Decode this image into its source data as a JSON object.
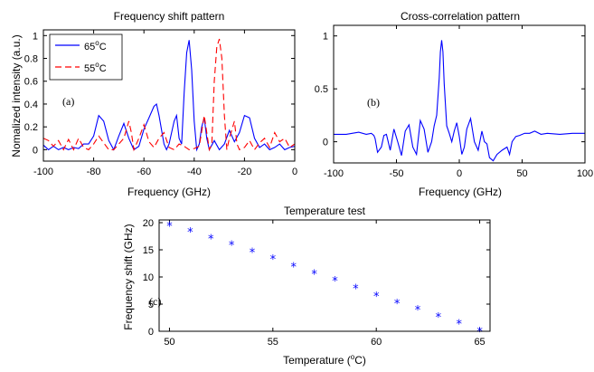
{
  "chart_data": [
    {
      "type": "line",
      "title": "Frequency shift pattern",
      "xlabel": "Frequency (GHz)",
      "ylabel": "Nomalized intensity (a.u.)",
      "panel_label": "(a)",
      "xlim": [
        -100,
        0
      ],
      "ylim": [
        -0.1,
        1.05
      ],
      "xticks": [
        -100,
        -80,
        -60,
        -40,
        -20,
        0
      ],
      "xtick_labels": [
        "-100",
        "-80",
        "-60",
        "-40",
        "-20",
        "0"
      ],
      "yticks": [
        0,
        0.2,
        0.4,
        0.6,
        0.8,
        1
      ],
      "ytick_labels": [
        "0",
        "0.2",
        "0.4",
        "0.6",
        "0.8",
        "1"
      ],
      "legend_position": "top-left",
      "series": [
        {
          "name": "65°C",
          "name_base": "65",
          "name_sup": "o",
          "name_tail": "C",
          "color": "#0000ff",
          "style": "solid",
          "points": [
            [
              -100,
              0.04
            ],
            [
              -98,
              0.0
            ],
            [
              -96,
              0.03
            ],
            [
              -94,
              0.0
            ],
            [
              -92,
              0.02
            ],
            [
              -90,
              0.0
            ],
            [
              -88,
              0.02
            ],
            [
              -86,
              0.01
            ],
            [
              -84,
              0.05
            ],
            [
              -82,
              0.05
            ],
            [
              -80,
              0.12
            ],
            [
              -78,
              0.3
            ],
            [
              -76,
              0.25
            ],
            [
              -74,
              0.08
            ],
            [
              -72,
              0.0
            ],
            [
              -70,
              0.12
            ],
            [
              -68,
              0.23
            ],
            [
              -66,
              0.1
            ],
            [
              -64,
              0.0
            ],
            [
              -62,
              0.03
            ],
            [
              -60,
              0.18
            ],
            [
              -58,
              0.28
            ],
            [
              -56,
              0.38
            ],
            [
              -55,
              0.4
            ],
            [
              -54,
              0.3
            ],
            [
              -52,
              0.05
            ],
            [
              -51,
              0.0
            ],
            [
              -50,
              0.05
            ],
            [
              -48,
              0.25
            ],
            [
              -47,
              0.3
            ],
            [
              -46,
              0.1
            ],
            [
              -45,
              0.05
            ],
            [
              -44,
              0.5
            ],
            [
              -43,
              0.85
            ],
            [
              -42,
              0.96
            ],
            [
              -41,
              0.7
            ],
            [
              -40,
              0.25
            ],
            [
              -39,
              0.0
            ],
            [
              -38,
              0.05
            ],
            [
              -37,
              0.2
            ],
            [
              -36,
              0.28
            ],
            [
              -35,
              0.1
            ],
            [
              -34,
              0.0
            ],
            [
              -32,
              0.08
            ],
            [
              -30,
              0.0
            ],
            [
              -28,
              0.05
            ],
            [
              -26,
              0.17
            ],
            [
              -24,
              0.07
            ],
            [
              -22,
              0.15
            ],
            [
              -20,
              0.3
            ],
            [
              -18,
              0.28
            ],
            [
              -16,
              0.1
            ],
            [
              -14,
              0.02
            ],
            [
              -12,
              0.05
            ],
            [
              -10,
              0.0
            ],
            [
              -8,
              0.02
            ],
            [
              -6,
              0.05
            ],
            [
              -4,
              0.0
            ],
            [
              -2,
              0.02
            ],
            [
              0,
              0.03
            ]
          ]
        },
        {
          "name": "55°C",
          "name_base": "55",
          "name_sup": "o",
          "name_tail": "C",
          "color": "#ff0000",
          "style": "dashed",
          "points": [
            [
              -100,
              0.1
            ],
            [
              -98,
              0.08
            ],
            [
              -96,
              0.03
            ],
            [
              -94,
              0.08
            ],
            [
              -92,
              0.0
            ],
            [
              -90,
              0.09
            ],
            [
              -88,
              0.0
            ],
            [
              -86,
              0.1
            ],
            [
              -84,
              0.02
            ],
            [
              -82,
              0.0
            ],
            [
              -80,
              0.05
            ],
            [
              -78,
              0.12
            ],
            [
              -76,
              0.06
            ],
            [
              -74,
              0.0
            ],
            [
              -72,
              0.0
            ],
            [
              -70,
              0.05
            ],
            [
              -68,
              0.1
            ],
            [
              -66,
              0.25
            ],
            [
              -65,
              0.15
            ],
            [
              -64,
              0.0
            ],
            [
              -62,
              0.1
            ],
            [
              -60,
              0.22
            ],
            [
              -58,
              0.07
            ],
            [
              -56,
              0.02
            ],
            [
              -54,
              0.1
            ],
            [
              -52,
              0.15
            ],
            [
              -50,
              0.02
            ],
            [
              -48,
              0.0
            ],
            [
              -46,
              0.05
            ],
            [
              -44,
              0.03
            ],
            [
              -42,
              0.0
            ],
            [
              -40,
              0.01
            ],
            [
              -38,
              0.03
            ],
            [
              -36,
              0.3
            ],
            [
              -34,
              0.0
            ],
            [
              -33,
              0.05
            ],
            [
              -32,
              0.6
            ],
            [
              -31,
              0.9
            ],
            [
              -30,
              0.97
            ],
            [
              -29,
              0.8
            ],
            [
              -28,
              0.3
            ],
            [
              -27,
              0.0
            ],
            [
              -26,
              0.1
            ],
            [
              -24,
              0.25
            ],
            [
              -23,
              0.05
            ],
            [
              -22,
              0.0
            ],
            [
              -20,
              0.02
            ],
            [
              -18,
              0.08
            ],
            [
              -16,
              0.0
            ],
            [
              -14,
              0.06
            ],
            [
              -12,
              0.1
            ],
            [
              -10,
              0.02
            ],
            [
              -8,
              0.15
            ],
            [
              -6,
              0.07
            ],
            [
              -4,
              0.1
            ],
            [
              -2,
              0.02
            ],
            [
              0,
              0.05
            ]
          ]
        }
      ]
    },
    {
      "type": "line",
      "title": "Cross-correlation pattern",
      "xlabel": "Frequency (GHz)",
      "ylabel": "",
      "panel_label": "(b)",
      "xlim": [
        -100,
        100
      ],
      "ylim": [
        -0.2,
        1.1
      ],
      "xticks": [
        -100,
        -50,
        0,
        50,
        100
      ],
      "xtick_labels": [
        "-100",
        "-50",
        "0",
        "50",
        "100"
      ],
      "yticks": [
        0,
        0.5,
        1
      ],
      "ytick_labels": [
        "0",
        "0.5",
        "1"
      ],
      "series": [
        {
          "color": "#0000ff",
          "style": "solid",
          "points": [
            [
              -100,
              0.07
            ],
            [
              -90,
              0.07
            ],
            [
              -80,
              0.09
            ],
            [
              -74,
              0.07
            ],
            [
              -70,
              0.08
            ],
            [
              -68,
              0.06
            ],
            [
              -67,
              0.03
            ],
            [
              -65,
              -0.1
            ],
            [
              -62,
              -0.05
            ],
            [
              -60,
              0.06
            ],
            [
              -58,
              0.07
            ],
            [
              -55,
              -0.08
            ],
            [
              -52,
              0.12
            ],
            [
              -49,
              0.0
            ],
            [
              -46,
              -0.13
            ],
            [
              -43,
              0.1
            ],
            [
              -40,
              0.16
            ],
            [
              -37,
              -0.05
            ],
            [
              -34,
              -0.12
            ],
            [
              -31,
              0.2
            ],
            [
              -28,
              0.12
            ],
            [
              -25,
              -0.1
            ],
            [
              -22,
              0.0
            ],
            [
              -20,
              0.15
            ],
            [
              -18,
              0.25
            ],
            [
              -16,
              0.6
            ],
            [
              -15,
              0.85
            ],
            [
              -14,
              0.96
            ],
            [
              -13,
              0.85
            ],
            [
              -12,
              0.55
            ],
            [
              -10,
              0.15
            ],
            [
              -8,
              0.08
            ],
            [
              -6,
              0.0
            ],
            [
              -4,
              0.1
            ],
            [
              -2,
              0.18
            ],
            [
              0,
              0.05
            ],
            [
              2,
              -0.12
            ],
            [
              4,
              -0.05
            ],
            [
              6,
              0.12
            ],
            [
              9,
              0.22
            ],
            [
              12,
              0.0
            ],
            [
              15,
              -0.08
            ],
            [
              18,
              0.1
            ],
            [
              20,
              0.0
            ],
            [
              22,
              -0.02
            ],
            [
              24,
              -0.15
            ],
            [
              27,
              -0.18
            ],
            [
              30,
              -0.12
            ],
            [
              34,
              -0.08
            ],
            [
              38,
              -0.05
            ],
            [
              40,
              -0.12
            ],
            [
              42,
              0.0
            ],
            [
              45,
              0.05
            ],
            [
              48,
              0.06
            ],
            [
              52,
              0.08
            ],
            [
              56,
              0.08
            ],
            [
              60,
              0.1
            ],
            [
              65,
              0.07
            ],
            [
              70,
              0.08
            ],
            [
              80,
              0.07
            ],
            [
              90,
              0.08
            ],
            [
              100,
              0.08
            ]
          ]
        }
      ]
    },
    {
      "type": "scatter",
      "title": "Temperature test",
      "xlabel": "Temperature (°C)",
      "xlabel_base": "Temperature (",
      "xlabel_sup": "o",
      "xlabel_tail": "C)",
      "ylabel": "Frequency shift (GHz)",
      "panel_label": "(c)",
      "xlim": [
        49.5,
        65.5
      ],
      "ylim": [
        0,
        20.5
      ],
      "xticks": [
        50,
        55,
        60,
        65
      ],
      "xtick_labels": [
        "50",
        "55",
        "60",
        "65"
      ],
      "yticks": [
        0,
        5,
        10,
        15,
        20
      ],
      "ytick_labels": [
        "0",
        "5",
        "10",
        "15",
        "20"
      ],
      "marker": "*",
      "series": [
        {
          "color": "#0000ff",
          "x": [
            50,
            51,
            52,
            53,
            54,
            55,
            56,
            57,
            58,
            59,
            60,
            61,
            62,
            63,
            64,
            65
          ],
          "y": [
            19.4,
            18.3,
            17.1,
            15.9,
            14.6,
            13.3,
            11.9,
            10.6,
            9.3,
            7.9,
            6.5,
            5.2,
            4.0,
            2.7,
            1.4,
            0.0
          ]
        }
      ]
    }
  ]
}
